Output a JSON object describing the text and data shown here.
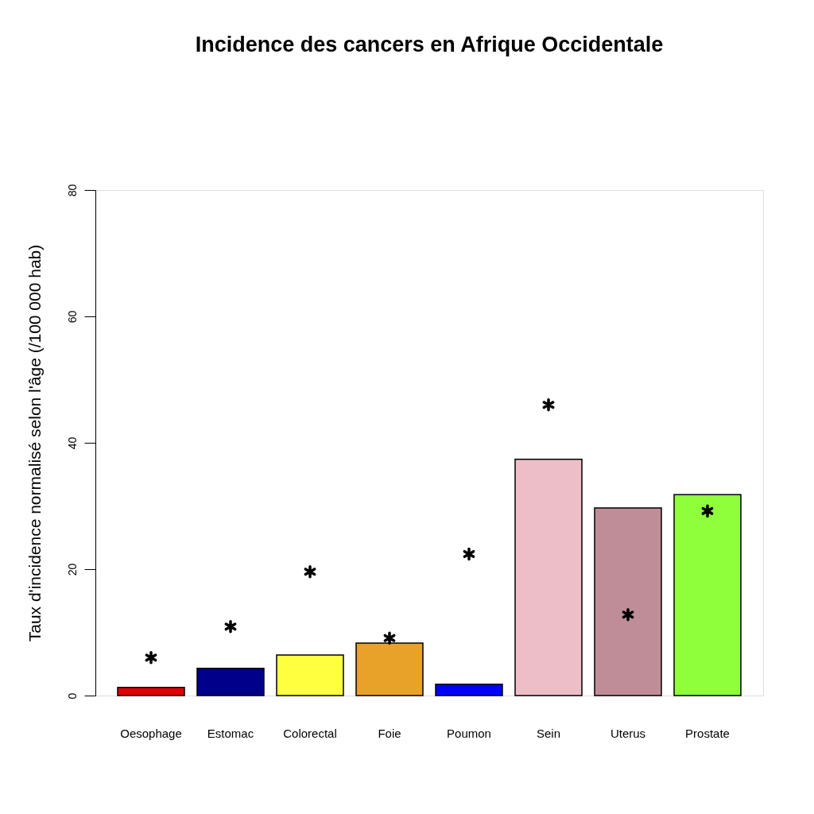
{
  "chart_data": {
    "type": "bar",
    "title": "Incidence des cancers en Afrique Occidentale",
    "ylabel": "Taux d'incidence normalisé selon l'âge (/100 000 hab)",
    "categories": [
      "Oesophage",
      "Estomac",
      "Colorectal",
      "Foie",
      "Poumon",
      "Sein",
      "Uterus",
      "Prostate"
    ],
    "series": [
      {
        "values": [
          1.3,
          4.3,
          6.4,
          8.3,
          1.8,
          37.4,
          29.7,
          31.8
        ],
        "colors": [
          "#e00000",
          "#00008b",
          "#ffff40",
          "#e8a22a",
          "#0000ff",
          "#eebec8",
          "#bf8d98",
          "#8fff3c"
        ]
      },
      {
        "type": "scatter",
        "marker": "cross",
        "color": "#000000",
        "x": [
          "Oesophage",
          "Estomac",
          "Colorectal",
          "Foie",
          "Poumon",
          "Sein",
          "Uterus",
          "Prostate"
        ],
        "values": [
          6.0,
          10.9,
          19.6,
          9.1,
          22.4,
          46.0,
          12.8,
          29.2
        ]
      }
    ],
    "ylim": [
      0,
      80
    ],
    "yticks": [
      0,
      20,
      40,
      60,
      80
    ],
    "grid": false
  }
}
